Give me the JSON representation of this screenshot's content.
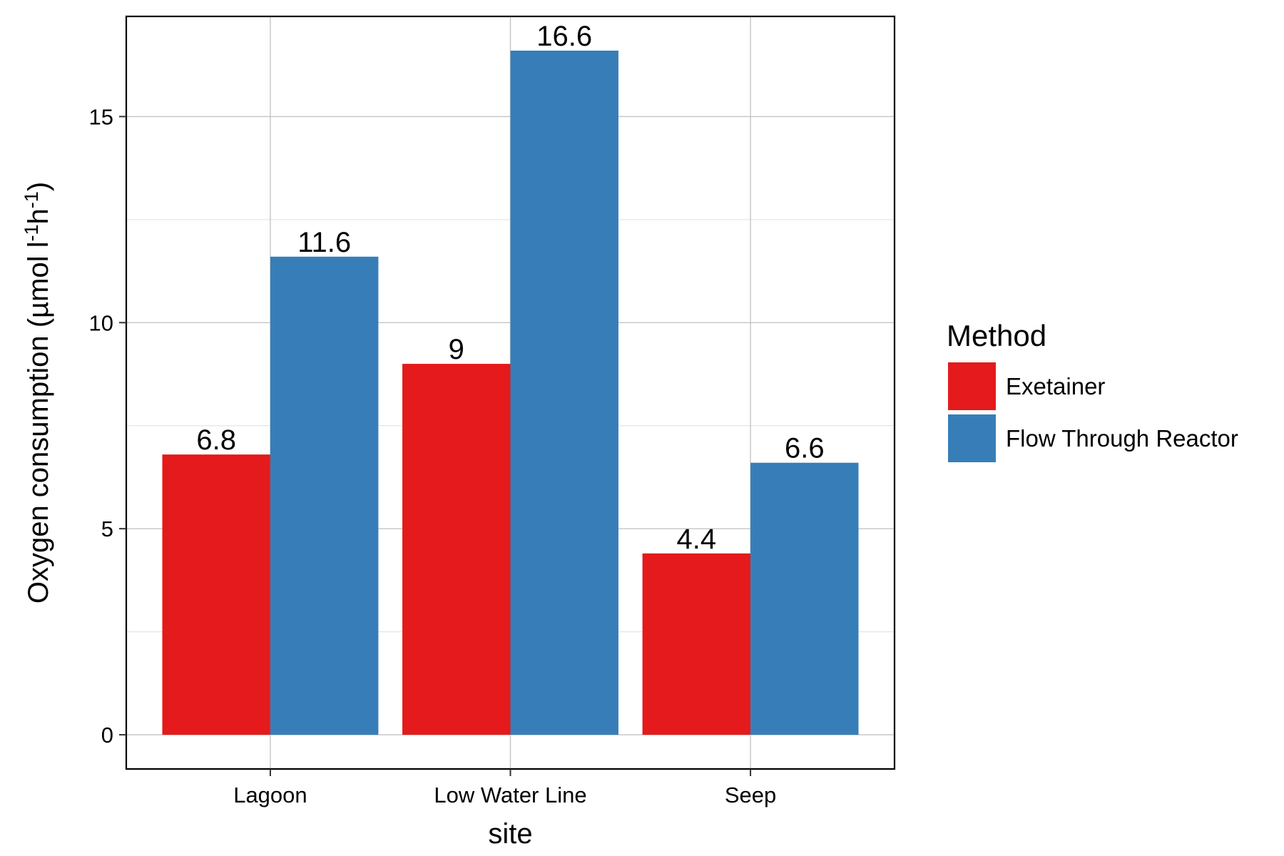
{
  "chart_data": {
    "type": "bar",
    "xlabel": "site",
    "ylabel": "Oxygen consumption (µmol l",
    "ylabel_sup1": "-1",
    "ylabel_mid": "h",
    "ylabel_sup2": "-1",
    "ylabel_end": ")",
    "categories": [
      "Lagoon",
      "Low Water Line",
      "Seep"
    ],
    "series": [
      {
        "name": "Exetainer",
        "values": [
          6.8,
          9,
          4.4
        ],
        "labels": [
          "6.8",
          "9",
          "4.4"
        ],
        "color": "#e41a1c"
      },
      {
        "name": "Flow Through Reactor",
        "values": [
          11.6,
          16.6,
          6.6
        ],
        "labels": [
          "11.6",
          "16.6",
          "6.6"
        ],
        "color": "#377eb8"
      }
    ],
    "ylim": [
      -0.83,
      17.43
    ],
    "yticks": [
      0,
      5,
      10,
      15
    ],
    "ytick_labels": [
      "0",
      "5",
      "10",
      "15"
    ],
    "grid": true,
    "legend": {
      "title": "Method",
      "position": "right"
    }
  }
}
